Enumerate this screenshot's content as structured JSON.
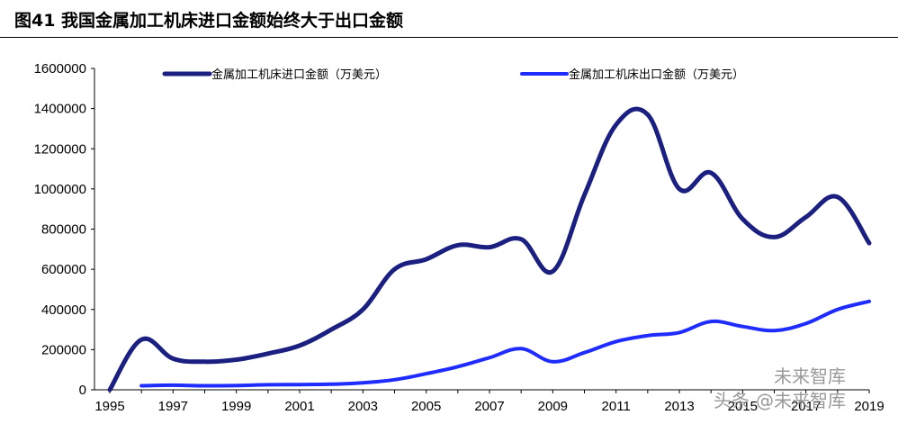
{
  "figure_title": "图41 我国金属加工机床进口金额始终大于出口金额",
  "colors": {
    "import": "#1a1f80",
    "export": "#1f2cff",
    "axis": "#000000"
  },
  "watermark": {
    "line1": "未来智库",
    "line2_prefix": "头条",
    "line2_handle": "@未来智库"
  },
  "chart_data": {
    "type": "line",
    "title": "",
    "xlabel": "",
    "ylabel": "",
    "xlim": [
      1995,
      2019
    ],
    "ylim": [
      0,
      1600000
    ],
    "y_ticks": [
      0,
      200000,
      400000,
      600000,
      800000,
      1000000,
      1200000,
      1400000,
      1600000
    ],
    "y_tick_labels": [
      "0",
      "200000",
      "400000",
      "600000",
      "800000",
      "1000000",
      "1200000",
      "1400000",
      "1600000"
    ],
    "x_ticks": [
      1995,
      1997,
      1999,
      2001,
      2003,
      2005,
      2007,
      2009,
      2011,
      2013,
      2015,
      2017,
      2019
    ],
    "x_tick_labels": [
      "1995",
      "1997",
      "1999",
      "2001",
      "2003",
      "2005",
      "2007",
      "2009",
      "2011",
      "2013",
      "2015",
      "2017",
      "2019"
    ],
    "grid": false,
    "legend_position": "top",
    "series": [
      {
        "name": "金属加工机床进口金额（万美元）",
        "color": "#1a1f80",
        "x": [
          1995,
          1996,
          1997,
          1998,
          1999,
          2000,
          2001,
          2002,
          2003,
          2004,
          2005,
          2006,
          2007,
          2008,
          2009,
          2010,
          2011,
          2012,
          2013,
          2014,
          2015,
          2016,
          2017,
          2018,
          2019
        ],
        "values": [
          0,
          250000,
          155000,
          140000,
          150000,
          180000,
          220000,
          300000,
          400000,
          600000,
          650000,
          720000,
          710000,
          750000,
          590000,
          970000,
          1320000,
          1370000,
          1000000,
          1080000,
          850000,
          760000,
          860000,
          960000,
          730000
        ]
      },
      {
        "name": "金属加工机床出口金额（万美元）",
        "color": "#1f2cff",
        "x": [
          1996,
          1997,
          1998,
          1999,
          2000,
          2001,
          2002,
          2003,
          2004,
          2005,
          2006,
          2007,
          2008,
          2009,
          2010,
          2011,
          2012,
          2013,
          2014,
          2015,
          2016,
          2017,
          2018,
          2019
        ],
        "values": [
          20000,
          23000,
          20000,
          21000,
          25000,
          26000,
          28000,
          35000,
          50000,
          80000,
          115000,
          160000,
          205000,
          140000,
          185000,
          240000,
          270000,
          285000,
          340000,
          315000,
          295000,
          330000,
          400000,
          440000
        ]
      }
    ]
  }
}
